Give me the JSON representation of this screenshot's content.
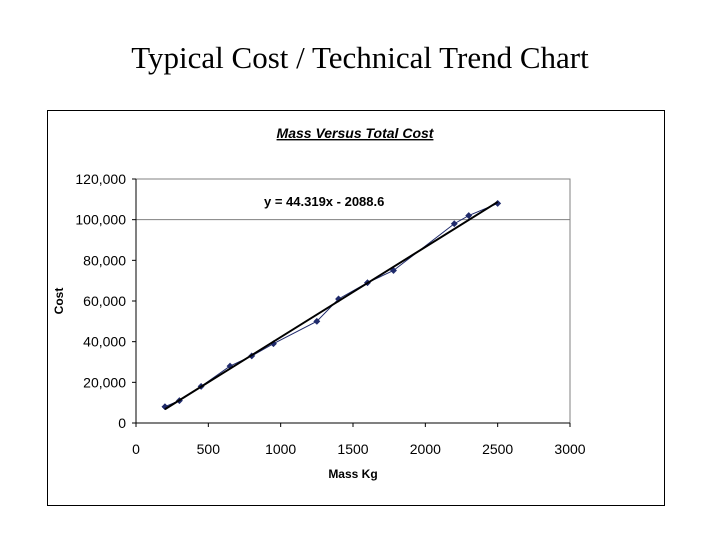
{
  "slide": {
    "title": "Typical Cost / Technical Trend Chart"
  },
  "chart_data": {
    "type": "scatter",
    "title": "Mass Versus Total Cost",
    "xlabel": "Mass Kg",
    "ylabel": "Cost",
    "xlim": [
      0,
      3000
    ],
    "ylim": [
      0,
      120000
    ],
    "x_ticks": [
      "0",
      "500",
      "1000",
      "1500",
      "2000",
      "2500",
      "3000"
    ],
    "x_tick_values": [
      0,
      500,
      1000,
      1500,
      2000,
      2500,
      3000
    ],
    "y_ticks": [
      "0",
      "20,000",
      "40,000",
      "60,000",
      "80,000",
      "100,000",
      "120,000"
    ],
    "y_tick_values": [
      0,
      20000,
      40000,
      60000,
      80000,
      100000,
      120000
    ],
    "grid": {
      "horizontal": [
        100000
      ],
      "vertical": false
    },
    "series": [
      {
        "points": [
          {
            "x": 200,
            "y": 8000
          },
          {
            "x": 300,
            "y": 11000
          },
          {
            "x": 450,
            "y": 18000
          },
          {
            "x": 650,
            "y": 28000
          },
          {
            "x": 800,
            "y": 33000
          },
          {
            "x": 950,
            "y": 39000
          },
          {
            "x": 1250,
            "y": 50000
          },
          {
            "x": 1400,
            "y": 61000
          },
          {
            "x": 1600,
            "y": 69000
          },
          {
            "x": 1780,
            "y": 75000
          },
          {
            "x": 2200,
            "y": 98000
          },
          {
            "x": 2300,
            "y": 102000
          },
          {
            "x": 2500,
            "y": 108000
          }
        ],
        "color": "#1f2a6b",
        "connected": true
      }
    ],
    "trendline": {
      "slope": 44.319,
      "intercept": -2088.6,
      "x_range": [
        200,
        2500
      ],
      "equation_label": "y = 44.319x - 2088.6",
      "color": "#000000"
    }
  }
}
